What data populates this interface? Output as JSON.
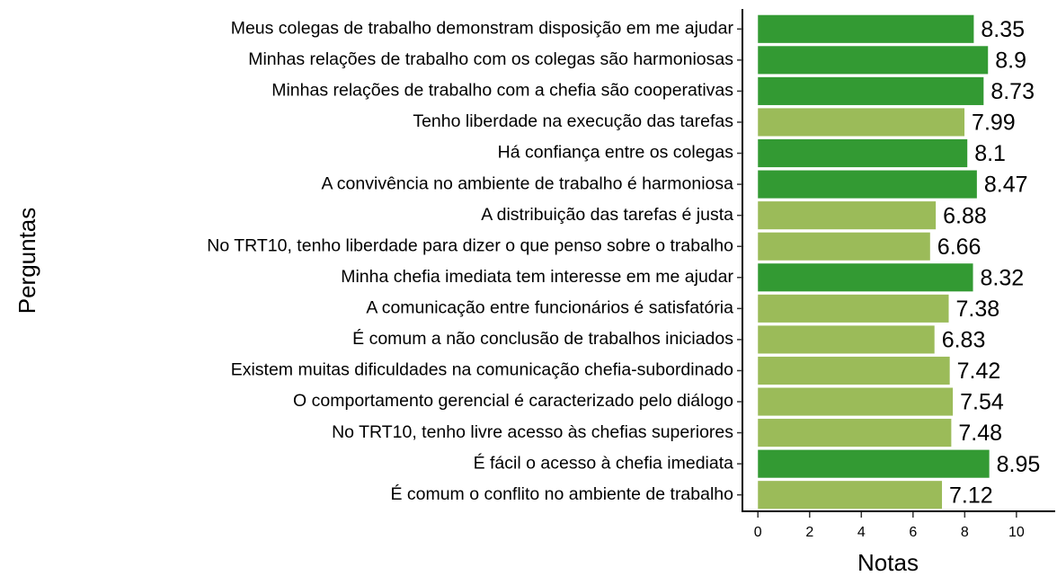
{
  "chart_data": {
    "type": "barh",
    "x_label": "Notas",
    "y_label": "Perguntas",
    "categories": [
      "Meus colegas de trabalho demonstram disposição em me ajudar",
      "Minhas relações de trabalho com os colegas são harmoniosas",
      "Minhas relações de trabalho com a chefia são cooperativas",
      "Tenho liberdade na execução das tarefas",
      "Há confiança entre os colegas",
      "A convivência no ambiente de trabalho é harmoniosa",
      "A distribuição das tarefas é justa",
      "No TRT10, tenho liberdade para dizer o que penso sobre o trabalho",
      "Minha chefia imediata tem interesse em me ajudar",
      "A comunicação entre funcionários é satisfatória",
      "É comum a não conclusão de trabalhos iniciados",
      "Existem muitas dificuldades na comunicação chefia-subordinado",
      "O comportamento gerencial é caracterizado pelo diálogo",
      "No TRT10, tenho livre acesso às chefias superiores",
      "É fácil o acesso à chefia imediata",
      "É comum o conflito no ambiente de trabalho"
    ],
    "values": [
      8.35,
      8.9,
      8.73,
      7.99,
      8.1,
      8.47,
      6.88,
      6.66,
      8.32,
      7.38,
      6.83,
      7.42,
      7.54,
      7.48,
      8.95,
      7.12
    ],
    "colors": [
      "#339a33",
      "#339a33",
      "#339a33",
      "#9bbb59",
      "#339a33",
      "#339a33",
      "#9bbb59",
      "#9bbb59",
      "#339a33",
      "#9bbb59",
      "#9bbb59",
      "#9bbb59",
      "#9bbb59",
      "#9bbb59",
      "#339a33",
      "#9bbb59"
    ],
    "xlim": [
      -0.6,
      11.5
    ],
    "xticks": [
      0,
      2,
      4,
      6,
      8,
      10
    ]
  }
}
